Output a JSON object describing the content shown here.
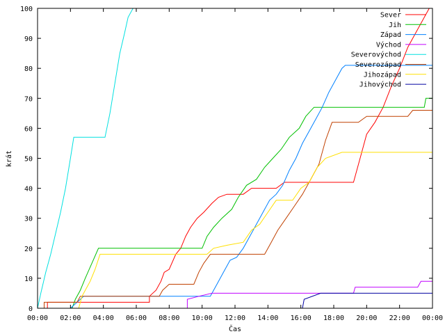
{
  "chart_data": {
    "type": "line",
    "xlabel": "Čas",
    "ylabel": "krát",
    "xlim": [
      0,
      24
    ],
    "ylim": [
      0,
      100
    ],
    "grid": false,
    "legend_position": "top-right",
    "x_ticks": [
      {
        "value": 0,
        "label": "00:00"
      },
      {
        "value": 2,
        "label": "02:00"
      },
      {
        "value": 4,
        "label": "04:00"
      },
      {
        "value": 6,
        "label": "06:00"
      },
      {
        "value": 8,
        "label": "08:00"
      },
      {
        "value": 10,
        "label": "10:00"
      },
      {
        "value": 12,
        "label": "12:00"
      },
      {
        "value": 14,
        "label": "14:00"
      },
      {
        "value": 16,
        "label": "16:00"
      },
      {
        "value": 18,
        "label": "18:00"
      },
      {
        "value": 20,
        "label": "20:00"
      },
      {
        "value": 22,
        "label": "22:00"
      },
      {
        "value": 24,
        "label": "00:00"
      }
    ],
    "y_ticks": [
      {
        "value": 0,
        "label": "0"
      },
      {
        "value": 10,
        "label": "10"
      },
      {
        "value": 20,
        "label": "20"
      },
      {
        "value": 30,
        "label": "30"
      },
      {
        "value": 40,
        "label": "40"
      },
      {
        "value": 50,
        "label": "50"
      },
      {
        "value": 60,
        "label": "60"
      },
      {
        "value": 70,
        "label": "70"
      },
      {
        "value": 80,
        "label": "80"
      },
      {
        "value": 90,
        "label": "90"
      },
      {
        "value": 100,
        "label": "100"
      }
    ],
    "series": [
      {
        "name": "Sever",
        "color": "#ff0000",
        "points": [
          [
            0,
            0
          ],
          [
            0.6,
            0
          ],
          [
            0.6,
            2
          ],
          [
            6.8,
            2
          ],
          [
            6.8,
            4
          ],
          [
            7.2,
            6
          ],
          [
            7.5,
            9
          ],
          [
            7.7,
            12
          ],
          [
            8.0,
            13
          ],
          [
            8.4,
            18
          ],
          [
            8.7,
            20
          ],
          [
            9.0,
            24
          ],
          [
            9.3,
            27
          ],
          [
            9.7,
            30
          ],
          [
            10.1,
            32
          ],
          [
            10.6,
            35
          ],
          [
            11.0,
            37
          ],
          [
            11.5,
            38
          ],
          [
            12.5,
            38
          ],
          [
            13.0,
            40
          ],
          [
            14.5,
            40
          ],
          [
            15.0,
            42
          ],
          [
            19.2,
            42
          ],
          [
            19.6,
            50
          ],
          [
            20.0,
            58
          ],
          [
            20.5,
            62
          ],
          [
            21.0,
            67
          ],
          [
            21.5,
            74
          ],
          [
            22.0,
            80
          ],
          [
            22.5,
            87
          ],
          [
            23.0,
            92
          ],
          [
            23.5,
            97
          ],
          [
            23.8,
            100
          ]
        ]
      },
      {
        "name": "Jih",
        "color": "#00c000",
        "points": [
          [
            0,
            0
          ],
          [
            2.1,
            0
          ],
          [
            2.3,
            3
          ],
          [
            2.6,
            6
          ],
          [
            2.9,
            10
          ],
          [
            3.3,
            15
          ],
          [
            3.7,
            20
          ],
          [
            10.0,
            20
          ],
          [
            10.3,
            24
          ],
          [
            10.7,
            27
          ],
          [
            11.2,
            30
          ],
          [
            11.8,
            33
          ],
          [
            12.2,
            37
          ],
          [
            12.7,
            41
          ],
          [
            13.3,
            43
          ],
          [
            13.8,
            47
          ],
          [
            14.3,
            50
          ],
          [
            14.8,
            53
          ],
          [
            15.3,
            57
          ],
          [
            15.9,
            60
          ],
          [
            16.3,
            64
          ],
          [
            16.8,
            67
          ],
          [
            23.5,
            67
          ],
          [
            23.6,
            70
          ],
          [
            24,
            70
          ]
        ]
      },
      {
        "name": "Západ",
        "color": "#0080ff",
        "points": [
          [
            0,
            0
          ],
          [
            2.0,
            0
          ],
          [
            2.4,
            2
          ],
          [
            2.8,
            4
          ],
          [
            10.5,
            4
          ],
          [
            10.9,
            8
          ],
          [
            11.3,
            12
          ],
          [
            11.7,
            16
          ],
          [
            12.1,
            17
          ],
          [
            12.5,
            20
          ],
          [
            12.9,
            24
          ],
          [
            13.3,
            28
          ],
          [
            13.7,
            32
          ],
          [
            14.1,
            36
          ],
          [
            14.5,
            38
          ],
          [
            14.9,
            41
          ],
          [
            15.3,
            46
          ],
          [
            15.7,
            50
          ],
          [
            16.1,
            55
          ],
          [
            16.5,
            59
          ],
          [
            16.9,
            63
          ],
          [
            17.3,
            67
          ],
          [
            17.7,
            72
          ],
          [
            18.1,
            76
          ],
          [
            18.5,
            80
          ],
          [
            18.7,
            81
          ],
          [
            24,
            81
          ]
        ]
      },
      {
        "name": "Východ",
        "color": "#c000ff",
        "points": [
          [
            0,
            0
          ],
          [
            9.1,
            0
          ],
          [
            9.1,
            3
          ],
          [
            9.8,
            4
          ],
          [
            10.6,
            5
          ],
          [
            19.2,
            5
          ],
          [
            19.3,
            7
          ],
          [
            23.1,
            7
          ],
          [
            23.3,
            9
          ],
          [
            24,
            9
          ]
        ]
      },
      {
        "name": "Severovýchod",
        "color": "#00e0e0",
        "points": [
          [
            0,
            0
          ],
          [
            0.2,
            5
          ],
          [
            0.5,
            12
          ],
          [
            0.8,
            18
          ],
          [
            1.1,
            25
          ],
          [
            1.4,
            32
          ],
          [
            1.7,
            40
          ],
          [
            2.0,
            50
          ],
          [
            2.2,
            57
          ],
          [
            4.1,
            57
          ],
          [
            4.4,
            65
          ],
          [
            4.7,
            75
          ],
          [
            5.0,
            85
          ],
          [
            5.3,
            92
          ],
          [
            5.5,
            97
          ],
          [
            5.8,
            100
          ]
        ]
      },
      {
        "name": "Severozápad",
        "color": "#c04000",
        "points": [
          [
            0,
            0
          ],
          [
            0.4,
            0
          ],
          [
            0.4,
            2
          ],
          [
            2.4,
            2
          ],
          [
            2.6,
            4
          ],
          [
            7.4,
            4
          ],
          [
            7.6,
            6
          ],
          [
            8.0,
            8
          ],
          [
            9.5,
            8
          ],
          [
            9.8,
            12
          ],
          [
            10.1,
            15
          ],
          [
            10.5,
            18
          ],
          [
            13.8,
            18
          ],
          [
            14.2,
            22
          ],
          [
            14.6,
            26
          ],
          [
            15.1,
            30
          ],
          [
            15.6,
            34
          ],
          [
            16.1,
            38
          ],
          [
            16.6,
            43
          ],
          [
            17.1,
            48
          ],
          [
            17.5,
            56
          ],
          [
            17.9,
            62
          ],
          [
            19.5,
            62
          ],
          [
            20.0,
            64
          ],
          [
            22.5,
            64
          ],
          [
            22.8,
            66
          ],
          [
            24,
            66
          ]
        ]
      },
      {
        "name": "Jihozápad",
        "color": "#ffe000",
        "points": [
          [
            0,
            0
          ],
          [
            2.5,
            0
          ],
          [
            2.7,
            4
          ],
          [
            3.2,
            9
          ],
          [
            3.5,
            13
          ],
          [
            3.8,
            18
          ],
          [
            10.3,
            18
          ],
          [
            10.7,
            20
          ],
          [
            11.5,
            21
          ],
          [
            12.5,
            22
          ],
          [
            13.0,
            26
          ],
          [
            13.5,
            28
          ],
          [
            14.0,
            32
          ],
          [
            14.5,
            36
          ],
          [
            15.5,
            36
          ],
          [
            16.0,
            40
          ],
          [
            16.5,
            42
          ],
          [
            17.0,
            47
          ],
          [
            17.5,
            50
          ],
          [
            18.5,
            52
          ],
          [
            24,
            52
          ]
        ]
      },
      {
        "name": "Jihovýchod",
        "color": "#0000a0",
        "points": [
          [
            0,
            0
          ],
          [
            16.1,
            0
          ],
          [
            16.2,
            3
          ],
          [
            17.2,
            5
          ],
          [
            24,
            5
          ]
        ]
      }
    ]
  }
}
